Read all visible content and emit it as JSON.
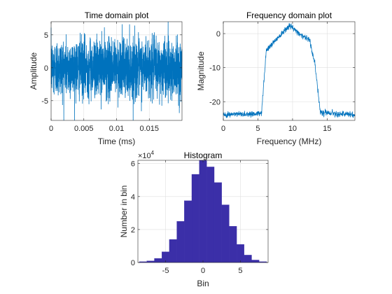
{
  "figure": {
    "background": "#ffffff"
  },
  "chart_data": [
    {
      "id": "time",
      "type": "line",
      "title": "Time domain plot",
      "xlabel": "Time (ms)",
      "ylabel": "Amplitude",
      "xlim": [
        0,
        0.02
      ],
      "ylim": [
        -8,
        7
      ],
      "xticks": [
        0,
        0.005,
        0.01,
        0.015
      ],
      "xtick_labels": [
        "0",
        "0.005",
        "0.01",
        "0.015"
      ],
      "yticks": [
        -5,
        0,
        5
      ],
      "ytick_labels": [
        "-5",
        "0",
        "5"
      ],
      "grid": true,
      "color": "#0072bd",
      "series": [
        {
          "description": "dense noise-like signal, roughly Gaussian around 0 with amplitude mostly within ±5 and occasional spikes beyond the axis limits",
          "sample_count": 2000,
          "x_range": [
            0,
            0.02
          ],
          "mean": 0,
          "std": 2.2
        }
      ]
    },
    {
      "id": "freq",
      "type": "line",
      "title": "Frequency domain plot",
      "xlabel": "Frequency (MHz)",
      "ylabel": "Magnitude",
      "xlim": [
        0,
        19
      ],
      "ylim": [
        -25.5,
        3.5
      ],
      "xticks": [
        0,
        5,
        10,
        15
      ],
      "xtick_labels": [
        "0",
        "5",
        "10",
        "15"
      ],
      "yticks": [
        -20,
        -10,
        0
      ],
      "ytick_labels": [
        "-20",
        "-10",
        "0"
      ],
      "grid": true,
      "color": "#0072bd",
      "series": [
        {
          "description": "noise floor near -23.8 from 0 to 5.5 MHz, steep rise to a plateau near -1 between about 6.5 and 12.5 MHz peaking near 2.5 at 9.5 MHz, steep fall back to the floor near -24 by 14 MHz",
          "x": [
            0,
            5.5,
            6.2,
            7.5,
            9.5,
            11,
            12.5,
            13.3,
            14,
            19
          ],
          "y": [
            -23.8,
            -23.5,
            -5,
            -2,
            2.5,
            0,
            -2,
            -10,
            -23,
            -24
          ]
        }
      ]
    },
    {
      "id": "hist",
      "type": "bar",
      "title": "Histogram",
      "xlabel": "Bin",
      "ylabel": "Number in bin",
      "exponent_label": "×10",
      "exponent_power": "4",
      "xlim": [
        -8.7,
        8.7
      ],
      "ylim": [
        0,
        62000
      ],
      "xticks": [
        -5,
        0,
        5
      ],
      "xtick_labels": [
        "-5",
        "0",
        "5"
      ],
      "yticks": [
        0,
        20000,
        40000,
        60000
      ],
      "ytick_labels": [
        "0",
        "2",
        "4",
        "6"
      ],
      "grid": true,
      "bar_color": "#3b2fa8",
      "bin_edges": [
        -8.5,
        -7.5,
        -6.5,
        -5.5,
        -4.5,
        -3.5,
        -2.5,
        -1.5,
        -0.5,
        0.5,
        1.5,
        2.5,
        3.5,
        4.5,
        5.5,
        6.5,
        7.5,
        8.5
      ],
      "values": [
        500,
        1000,
        2500,
        6500,
        14000,
        25000,
        37500,
        53500,
        62000,
        58000,
        48500,
        35000,
        22000,
        11000,
        4500,
        1500,
        500
      ]
    }
  ]
}
